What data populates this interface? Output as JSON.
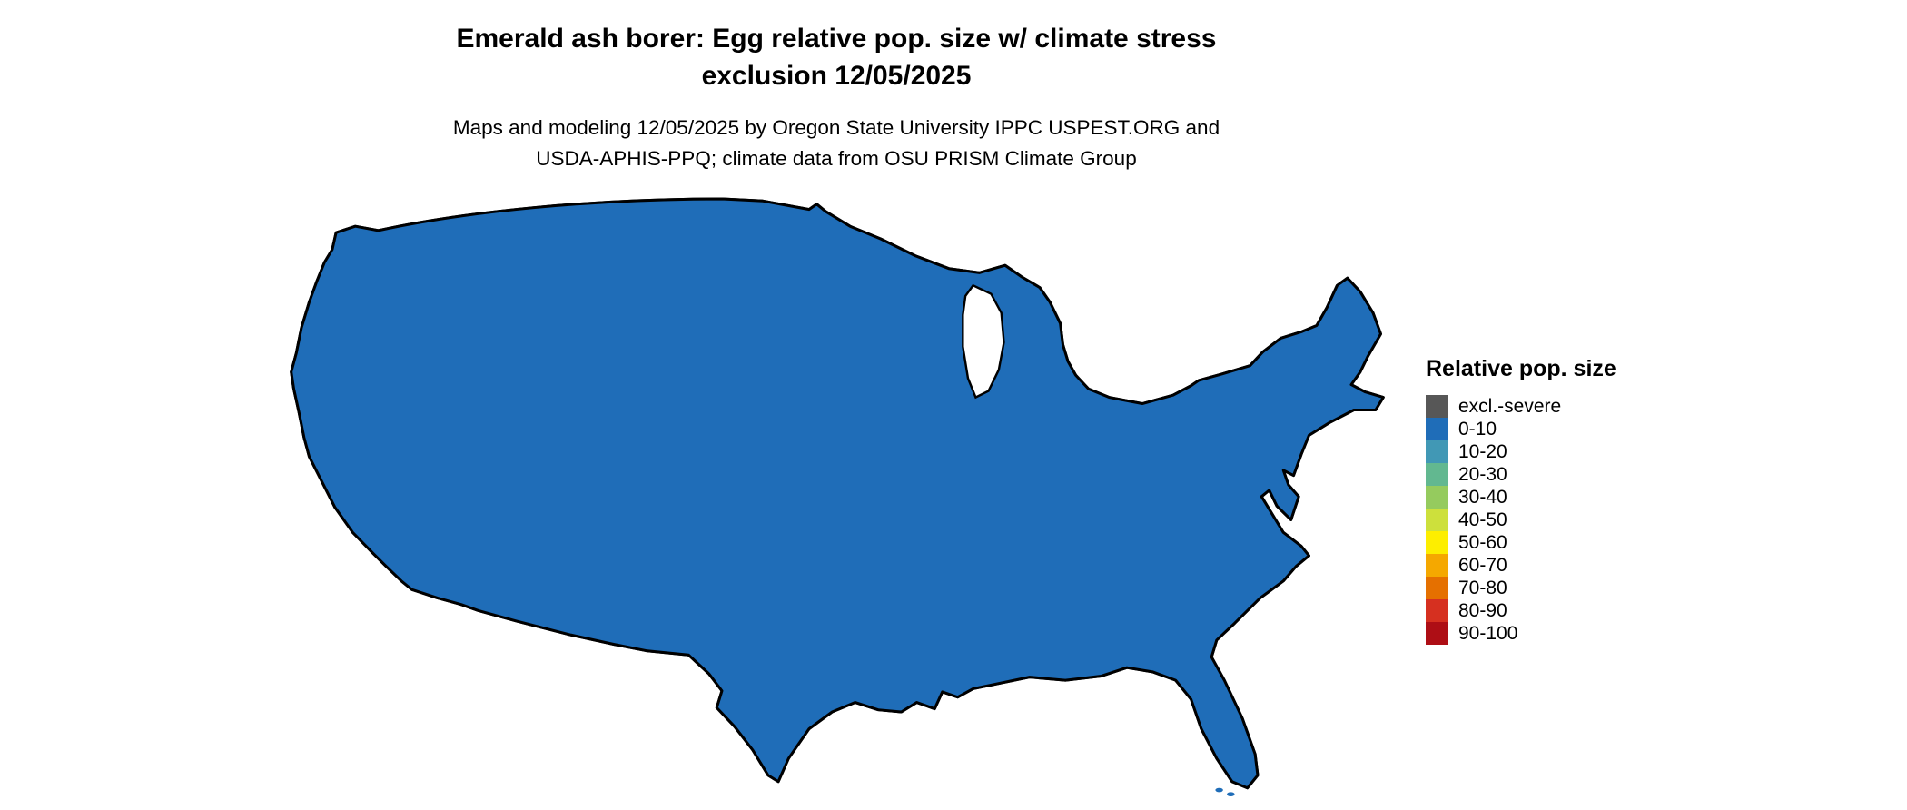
{
  "title": {
    "line1": "Emerald ash borer: Egg relative pop. size w/ climate stress",
    "line2": "exclusion 12/05/2025"
  },
  "subtitle": {
    "line1": "Maps and modeling 12/05/2025 by Oregon State University IPPC USPEST.ORG and",
    "line2": "USDA-APHIS-PPQ; climate data from OSU PRISM Climate Group"
  },
  "map": {
    "base_color": "#1f6db8",
    "border_color": "#000000",
    "water_color": "#ffffff",
    "background_color": "#ffffff",
    "exclusion_color": "#575757"
  },
  "legend": {
    "title": "Relative pop. size",
    "entries": [
      {
        "label": "excl.-severe",
        "color": "#575757"
      },
      {
        "label": "0-10",
        "color": "#1f6db8"
      },
      {
        "label": "10-20",
        "color": "#4198b5"
      },
      {
        "label": "20-30",
        "color": "#62b890"
      },
      {
        "label": "30-40",
        "color": "#95cb5e"
      },
      {
        "label": "40-50",
        "color": "#cde03c"
      },
      {
        "label": "50-60",
        "color": "#fdee00"
      },
      {
        "label": "60-70",
        "color": "#f5a800"
      },
      {
        "label": "70-80",
        "color": "#e57000"
      },
      {
        "label": "80-90",
        "color": "#d63020"
      },
      {
        "label": "90-100",
        "color": "#ae0e15"
      }
    ]
  }
}
